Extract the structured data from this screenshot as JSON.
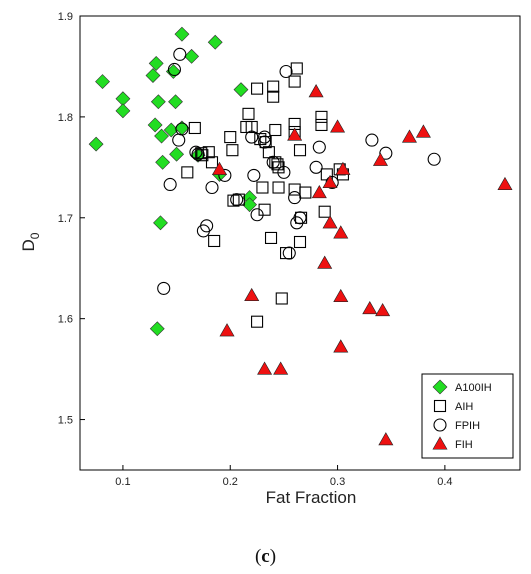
{
  "chart_data": {
    "type": "scatter",
    "xlabel": "Fat Fraction",
    "ylabel_main": "D",
    "ylabel_sub": "0",
    "xlim": [
      0.06,
      0.47
    ],
    "ylim": [
      1.45,
      1.9
    ],
    "xticks": [
      0.1,
      0.2,
      0.3,
      0.4
    ],
    "xtick_labels": [
      "0.1",
      "0.2",
      "0.3",
      "0.4"
    ],
    "yticks": [
      1.5,
      1.6,
      1.7,
      1.8,
      1.9
    ],
    "ytick_labels": [
      "1.5",
      "1.6",
      "1.7",
      "1.8",
      "1.9"
    ],
    "grid": false,
    "legend_position": "bottom-right",
    "series": [
      {
        "name": "A100IH",
        "marker": "diamond",
        "color": "#22dd22",
        "points": [
          [
            0.075,
            1.773
          ],
          [
            0.081,
            1.835
          ],
          [
            0.1,
            1.818
          ],
          [
            0.1,
            1.806
          ],
          [
            0.128,
            1.841
          ],
          [
            0.131,
            1.853
          ],
          [
            0.13,
            1.792
          ],
          [
            0.133,
            1.815
          ],
          [
            0.136,
            1.781
          ],
          [
            0.137,
            1.755
          ],
          [
            0.135,
            1.695
          ],
          [
            0.132,
            1.59
          ],
          [
            0.145,
            1.787
          ],
          [
            0.147,
            1.845
          ],
          [
            0.149,
            1.815
          ],
          [
            0.15,
            1.763
          ],
          [
            0.155,
            1.882
          ],
          [
            0.155,
            1.789
          ],
          [
            0.164,
            1.86
          ],
          [
            0.17,
            1.762
          ],
          [
            0.186,
            1.874
          ],
          [
            0.19,
            1.743
          ],
          [
            0.21,
            1.827
          ],
          [
            0.218,
            1.72
          ],
          [
            0.218,
            1.713
          ]
        ]
      },
      {
        "name": "AIH",
        "marker": "square",
        "color": "#000000",
        "points": [
          [
            0.16,
            1.745
          ],
          [
            0.167,
            1.789
          ],
          [
            0.173,
            1.764
          ],
          [
            0.174,
            1.762
          ],
          [
            0.18,
            1.765
          ],
          [
            0.183,
            1.755
          ],
          [
            0.185,
            1.677
          ],
          [
            0.2,
            1.78
          ],
          [
            0.202,
            1.767
          ],
          [
            0.203,
            1.717
          ],
          [
            0.208,
            1.718
          ],
          [
            0.215,
            1.79
          ],
          [
            0.217,
            1.803
          ],
          [
            0.22,
            1.79
          ],
          [
            0.225,
            1.828
          ],
          [
            0.225,
            1.597
          ],
          [
            0.228,
            1.778
          ],
          [
            0.23,
            1.73
          ],
          [
            0.232,
            1.708
          ],
          [
            0.233,
            1.775
          ],
          [
            0.236,
            1.765
          ],
          [
            0.238,
            1.68
          ],
          [
            0.24,
            1.83
          ],
          [
            0.24,
            1.82
          ],
          [
            0.242,
            1.787
          ],
          [
            0.242,
            1.755
          ],
          [
            0.244,
            1.753
          ],
          [
            0.245,
            1.75
          ],
          [
            0.245,
            1.73
          ],
          [
            0.248,
            1.62
          ],
          [
            0.252,
            1.665
          ],
          [
            0.26,
            1.793
          ],
          [
            0.26,
            1.785
          ],
          [
            0.26,
            1.835
          ],
          [
            0.262,
            1.848
          ],
          [
            0.26,
            1.728
          ],
          [
            0.265,
            1.767
          ],
          [
            0.266,
            1.7
          ],
          [
            0.265,
            1.676
          ],
          [
            0.27,
            1.725
          ],
          [
            0.285,
            1.8
          ],
          [
            0.285,
            1.792
          ],
          [
            0.288,
            1.706
          ],
          [
            0.29,
            1.743
          ],
          [
            0.302,
            1.748
          ],
          [
            0.305,
            1.743
          ]
        ]
      },
      {
        "name": "FPIH",
        "marker": "circle",
        "color": "#000000",
        "points": [
          [
            0.144,
            1.733
          ],
          [
            0.148,
            1.847
          ],
          [
            0.152,
            1.777
          ],
          [
            0.153,
            1.862
          ],
          [
            0.155,
            1.788
          ],
          [
            0.168,
            1.765
          ],
          [
            0.17,
            1.763
          ],
          [
            0.175,
            1.687
          ],
          [
            0.178,
            1.692
          ],
          [
            0.183,
            1.73
          ],
          [
            0.195,
            1.742
          ],
          [
            0.206,
            1.718
          ],
          [
            0.22,
            1.78
          ],
          [
            0.222,
            1.742
          ],
          [
            0.225,
            1.703
          ],
          [
            0.232,
            1.78
          ],
          [
            0.232,
            1.775
          ],
          [
            0.24,
            1.755
          ],
          [
            0.25,
            1.745
          ],
          [
            0.252,
            1.845
          ],
          [
            0.255,
            1.665
          ],
          [
            0.26,
            1.72
          ],
          [
            0.262,
            1.695
          ],
          [
            0.265,
            1.7
          ],
          [
            0.28,
            1.75
          ],
          [
            0.283,
            1.77
          ],
          [
            0.295,
            1.735
          ],
          [
            0.332,
            1.777
          ],
          [
            0.345,
            1.764
          ],
          [
            0.39,
            1.758
          ],
          [
            0.138,
            1.63
          ]
        ]
      },
      {
        "name": "FIH",
        "marker": "triangle",
        "color": "#ee1111",
        "points": [
          [
            0.19,
            1.748
          ],
          [
            0.197,
            1.588
          ],
          [
            0.22,
            1.623
          ],
          [
            0.232,
            1.55
          ],
          [
            0.247,
            1.55
          ],
          [
            0.26,
            1.782
          ],
          [
            0.28,
            1.825
          ],
          [
            0.283,
            1.725
          ],
          [
            0.288,
            1.655
          ],
          [
            0.293,
            1.695
          ],
          [
            0.293,
            1.735
          ],
          [
            0.3,
            1.79
          ],
          [
            0.303,
            1.685
          ],
          [
            0.303,
            1.622
          ],
          [
            0.303,
            1.572
          ],
          [
            0.305,
            1.748
          ],
          [
            0.33,
            1.61
          ],
          [
            0.34,
            1.757
          ],
          [
            0.342,
            1.608
          ],
          [
            0.345,
            1.48
          ],
          [
            0.367,
            1.78
          ],
          [
            0.38,
            1.785
          ],
          [
            0.456,
            1.733
          ]
        ]
      }
    ]
  },
  "panel_label": "(c)"
}
